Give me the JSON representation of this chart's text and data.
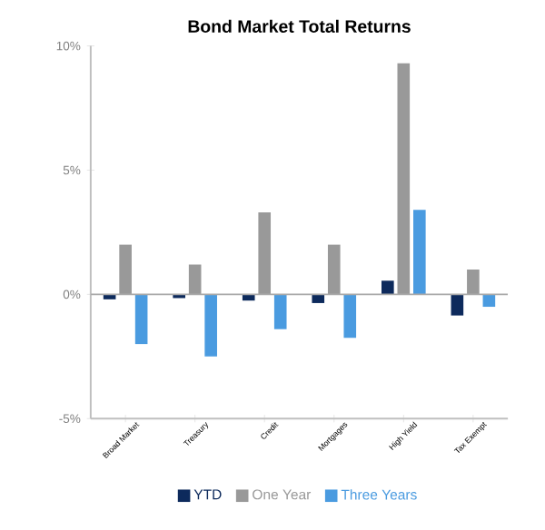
{
  "chart_data": {
    "type": "bar",
    "title": "Bond Market Total Returns",
    "categories": [
      "Broad Market",
      "Treasury",
      "Credit",
      "Mortgages",
      "High Yield",
      "Tax Exempt"
    ],
    "series": [
      {
        "name": "YTD",
        "color": "#0d2a5c",
        "values": [
          -0.2,
          -0.15,
          -0.25,
          -0.35,
          0.55,
          -0.85
        ]
      },
      {
        "name": "One Year",
        "color": "#999999",
        "values": [
          2.0,
          1.2,
          3.3,
          2.0,
          9.3,
          1.0
        ]
      },
      {
        "name": "Three Years",
        "color": "#4a9be0",
        "values": [
          -2.0,
          -2.5,
          -1.4,
          -1.75,
          3.4,
          -0.5
        ]
      }
    ],
    "ylim": [
      -5,
      10
    ],
    "yticks": [
      {
        "value": -5,
        "label": "-5%"
      },
      {
        "value": 0,
        "label": "0%"
      },
      {
        "value": 5,
        "label": "5%"
      },
      {
        "value": 10,
        "label": "10%"
      }
    ],
    "ref_lines": [
      {
        "axis": "y",
        "value": 0,
        "color": "#aaaaaa"
      }
    ],
    "grid": false,
    "legend": "bottom"
  }
}
